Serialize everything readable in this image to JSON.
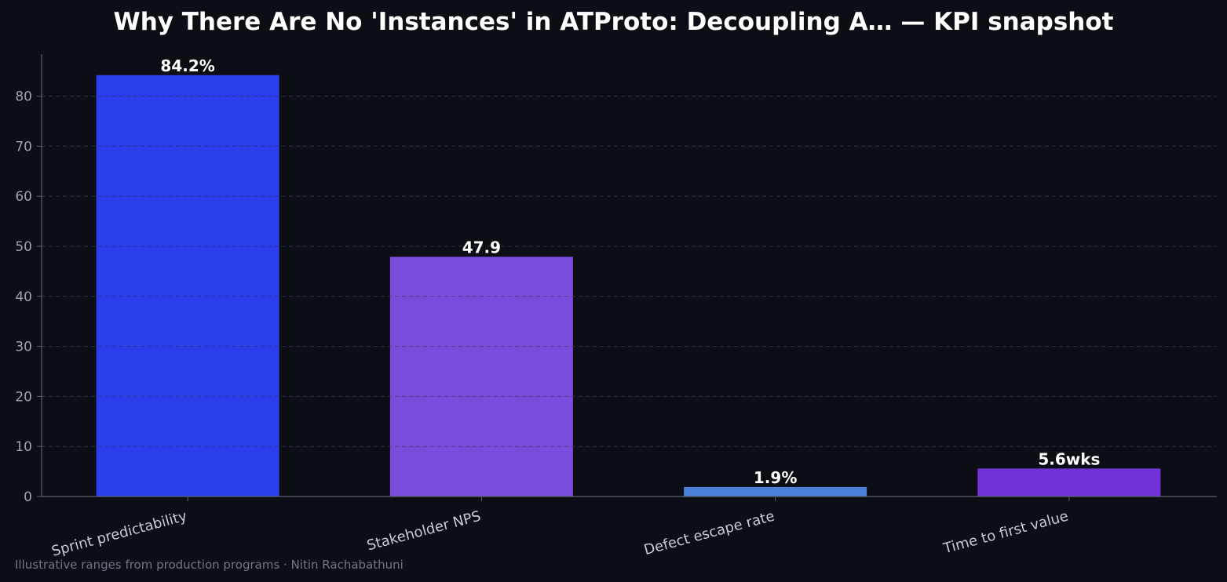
{
  "colors": {
    "background": "#0b0e14",
    "grid": "#2a2f3d",
    "axis": "#5a6170",
    "title": "#ffffff",
    "tick_label": "#9aa3b2",
    "category_label": "#c5ccd8",
    "footnote": "#6e7787"
  },
  "footnote": "Illustrative ranges from production programs · Nitin Rachabathuni",
  "chart_data": {
    "type": "bar",
    "title": "Why There Are No 'Instances' in ATProto: Decoupling A… — KPI snapshot",
    "xlabel": "",
    "ylabel": "",
    "ylim": [
      0,
      88.4
    ],
    "yticks": [
      0,
      10,
      20,
      30,
      40,
      50,
      60,
      70,
      80
    ],
    "grid": true,
    "grid_axis": "y",
    "grid_style": "dashed",
    "legend": "none",
    "categories": [
      "Sprint predictability",
      "Stakeholder NPS",
      "Defect escape rate",
      "Time to first value"
    ],
    "values": [
      84.2,
      47.9,
      1.9,
      5.6
    ],
    "value_labels": [
      "84.2%",
      "47.9",
      "1.9%",
      "5.6wks"
    ],
    "bar_colors": [
      "#2c3fec",
      "#7b4cdc",
      "#4a7fda",
      "#7232d6"
    ]
  }
}
